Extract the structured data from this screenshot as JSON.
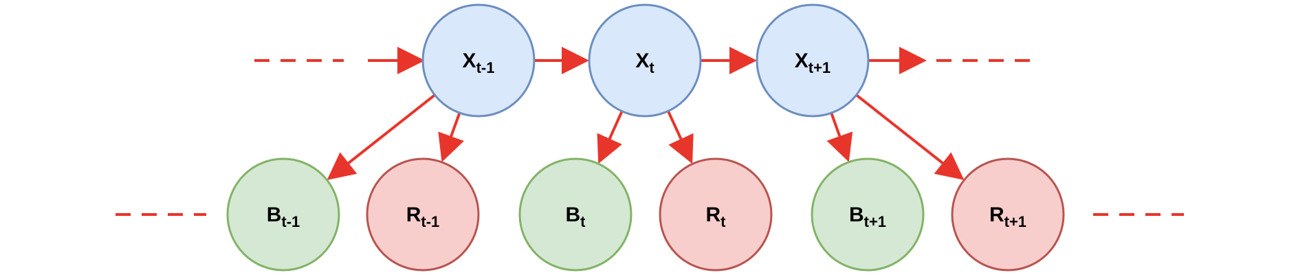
{
  "colors": {
    "edge": "#e8352b",
    "state_fill": "#dae8fc",
    "state_stroke": "#6c8ebf",
    "b_fill": "#d5e8d4",
    "b_stroke": "#82b366",
    "r_fill": "#f8cecc",
    "r_stroke": "#b85450"
  },
  "nodes": {
    "x_prev": {
      "base": "X",
      "sub": "t-1",
      "kind": "state"
    },
    "x_curr": {
      "base": "X",
      "sub": "t",
      "kind": "state"
    },
    "x_next": {
      "base": "X",
      "sub": "t+1",
      "kind": "state"
    },
    "b_prev": {
      "base": "B",
      "sub": "t-1",
      "kind": "b"
    },
    "r_prev": {
      "base": "R",
      "sub": "t-1",
      "kind": "r"
    },
    "b_curr": {
      "base": "B",
      "sub": "t",
      "kind": "b"
    },
    "r_curr": {
      "base": "R",
      "sub": "t",
      "kind": "r"
    },
    "b_next": {
      "base": "B",
      "sub": "t+1",
      "kind": "b"
    },
    "r_next": {
      "base": "R",
      "sub": "t+1",
      "kind": "r"
    }
  },
  "edges": [
    {
      "from": "x_prev",
      "to": "x_curr"
    },
    {
      "from": "x_curr",
      "to": "x_next"
    },
    {
      "from": "x_prev",
      "to": "b_prev"
    },
    {
      "from": "x_prev",
      "to": "r_prev"
    },
    {
      "from": "x_curr",
      "to": "b_curr"
    },
    {
      "from": "x_curr",
      "to": "r_curr"
    },
    {
      "from": "x_next",
      "to": "b_next"
    },
    {
      "from": "x_next",
      "to": "r_next"
    }
  ]
}
